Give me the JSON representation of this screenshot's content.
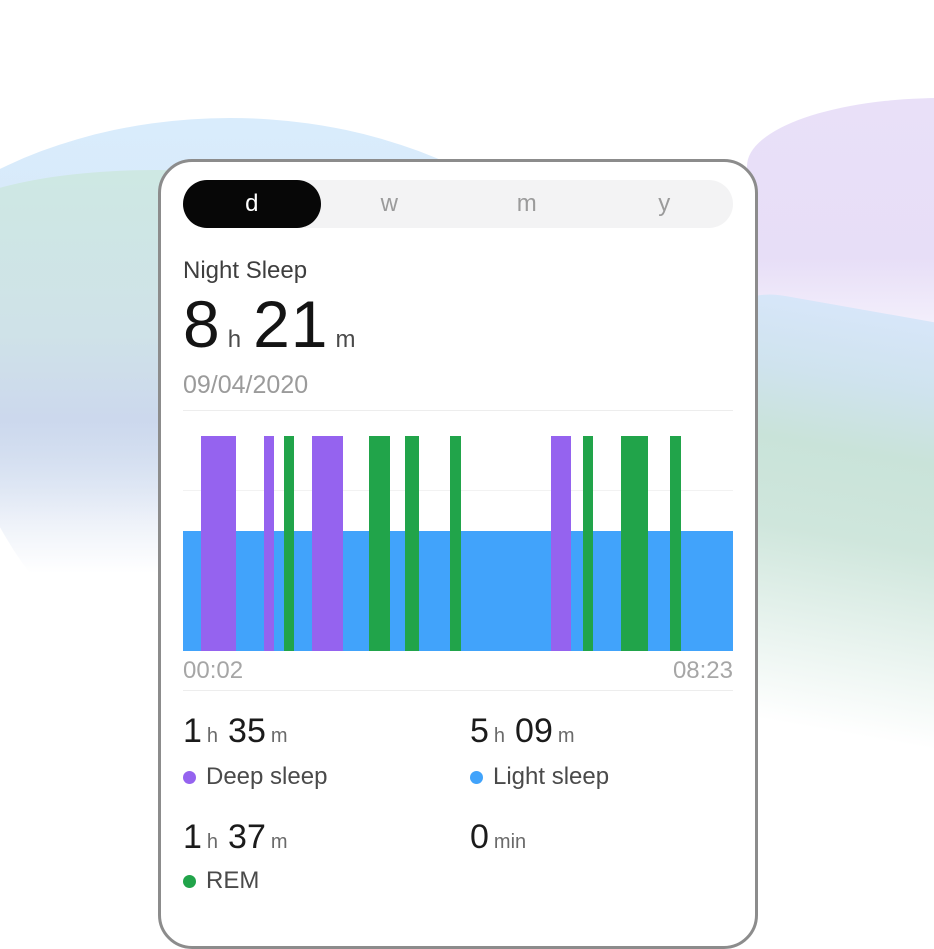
{
  "tabs": {
    "day": "d",
    "week": "w",
    "month": "m",
    "year": "y",
    "active": "d"
  },
  "summary": {
    "label": "Night Sleep",
    "hours": "8",
    "hours_unit": "h",
    "minutes": "21",
    "minutes_unit": "m",
    "date": "09/04/2020"
  },
  "chart_data": {
    "type": "sleep-stage-timeline",
    "x_start_label": "00:02",
    "x_end_label": "08:23",
    "grid": "single horizontal gridline at 25% from top",
    "light_sleep_band": {
      "stage": "light",
      "height_pct": 56
    },
    "segments": [
      {
        "stage": "deep",
        "left_pct": 3.2,
        "width_pct": 6.5
      },
      {
        "stage": "deep",
        "left_pct": 14.7,
        "width_pct": 1.8
      },
      {
        "stage": "rem",
        "left_pct": 18.3,
        "width_pct": 1.8
      },
      {
        "stage": "deep",
        "left_pct": 23.5,
        "width_pct": 5.6
      },
      {
        "stage": "rem",
        "left_pct": 33.8,
        "width_pct": 3.8
      },
      {
        "stage": "rem",
        "left_pct": 40.3,
        "width_pct": 2.7
      },
      {
        "stage": "rem",
        "left_pct": 48.5,
        "width_pct": 2.1
      },
      {
        "stage": "deep",
        "left_pct": 66.9,
        "width_pct": 3.7
      },
      {
        "stage": "rem",
        "left_pct": 72.7,
        "width_pct": 1.9
      },
      {
        "stage": "rem",
        "left_pct": 79.7,
        "width_pct": 4.8
      },
      {
        "stage": "rem",
        "left_pct": 88.6,
        "width_pct": 2.0
      }
    ],
    "stage_colors": {
      "deep": "#9563ef",
      "light": "#41a3fb",
      "rem": "#21a44a"
    }
  },
  "stats": {
    "deep": {
      "h": "1",
      "h_unit": "h",
      "m": "35",
      "m_unit": "m",
      "label": "Deep sleep",
      "color": "#9563ef"
    },
    "light": {
      "h": "5",
      "h_unit": "h",
      "m": "09",
      "m_unit": "m",
      "label": "Light sleep",
      "color": "#41a3fb"
    },
    "rem": {
      "h": "1",
      "h_unit": "h",
      "m": "37",
      "m_unit": "m",
      "label": "REM",
      "color": "#21a44a"
    },
    "awake": {
      "value": "0",
      "unit": "min"
    }
  },
  "colors": {
    "tab_active_bg": "#070707",
    "tab_active_text": "#ffffff",
    "tab_inactive_text": "#9b9b9b",
    "card_border": "#8c8c8c",
    "deep": "#9563ef",
    "light": "#41a3fb",
    "rem": "#21a44a"
  }
}
